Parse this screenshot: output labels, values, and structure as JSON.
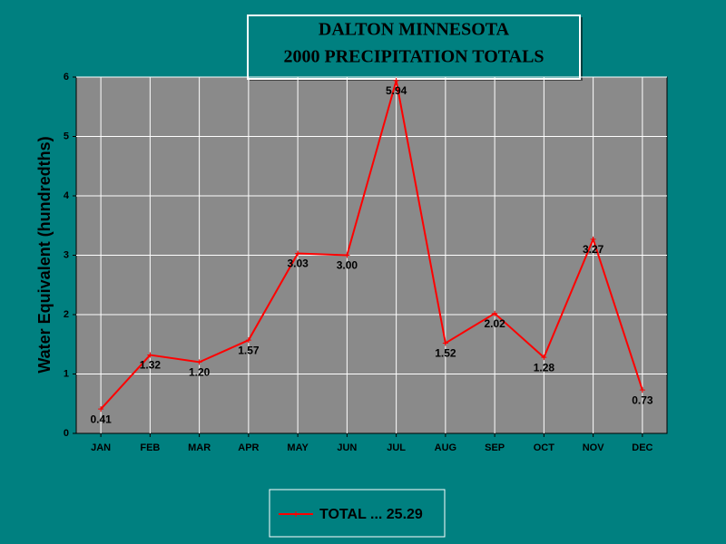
{
  "chart_data": {
    "type": "line",
    "title_lines": [
      "DALTON MINNESOTA",
      "2000 PRECIPITATION TOTALS"
    ],
    "y_label": "Water Equivalent (hundredths)",
    "categories": [
      "JAN",
      "FEB",
      "MAR",
      "APR",
      "MAY",
      "JUN",
      "JUL",
      "AUG",
      "SEP",
      "OCT",
      "NOV",
      "DEC"
    ],
    "series": [
      {
        "name": "TOTAL ... 25.29",
        "color": "#ff0000",
        "values": [
          0.41,
          1.32,
          1.2,
          1.57,
          3.03,
          3.0,
          5.94,
          1.52,
          2.02,
          1.28,
          3.27,
          0.73
        ],
        "value_labels": [
          "0.41",
          "1.32",
          "1.20",
          "1.57",
          "3.03",
          "3.00",
          "5.94",
          "1.52",
          "2.02",
          "1.28",
          "3.27",
          "0.73"
        ]
      }
    ],
    "ylim": [
      0,
      6
    ],
    "yticks": [
      0,
      1,
      2,
      3,
      4,
      5,
      6
    ],
    "grid": true
  }
}
